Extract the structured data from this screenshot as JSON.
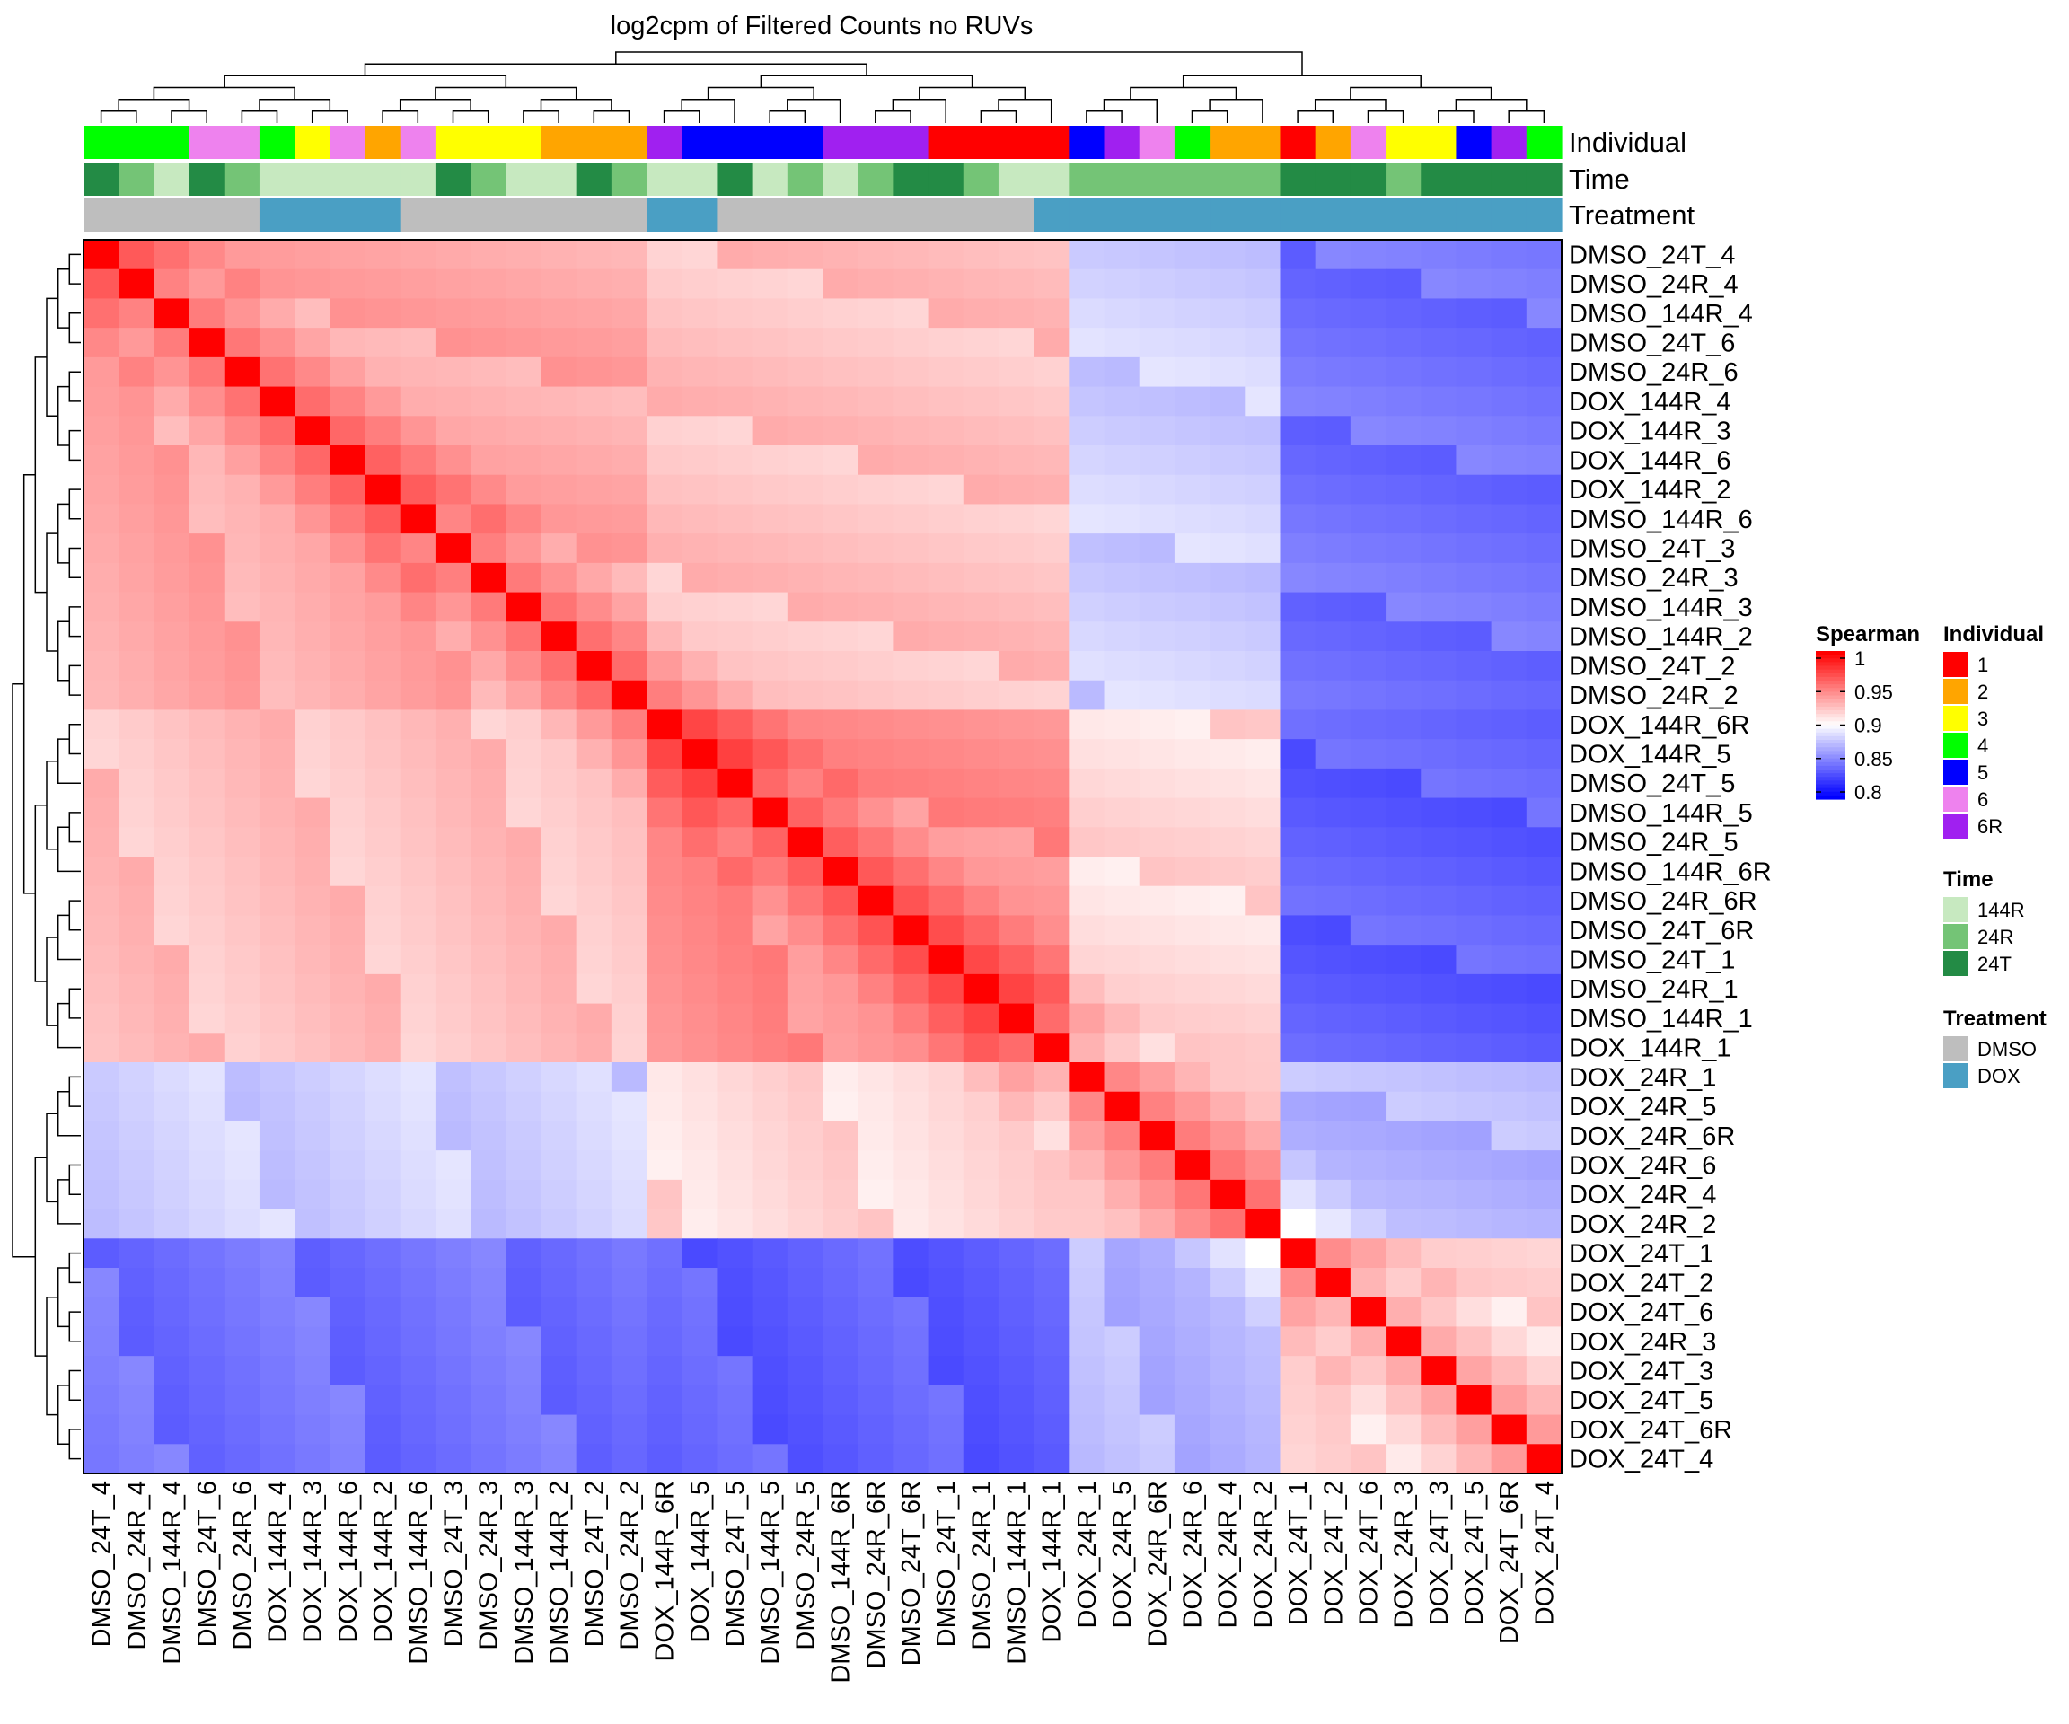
{
  "chart_data": {
    "type": "heatmap",
    "title": "log2cpm of Filtered Counts no RUVs",
    "labels": [
      "DMSO_24T_4",
      "DMSO_24R_4",
      "DMSO_144R_4",
      "DMSO_24T_6",
      "DMSO_24R_6",
      "DOX_144R_4",
      "DOX_144R_3",
      "DOX_144R_6",
      "DOX_144R_2",
      "DMSO_144R_6",
      "DMSO_24T_3",
      "DMSO_24R_3",
      "DMSO_144R_3",
      "DMSO_144R_2",
      "DMSO_24T_2",
      "DMSO_24R_2",
      "DOX_144R_6R",
      "DOX_144R_5",
      "DMSO_24T_5",
      "DMSO_144R_5",
      "DMSO_24R_5",
      "DMSO_144R_6R",
      "DMSO_24R_6R",
      "DMSO_24T_6R",
      "DMSO_24T_1",
      "DMSO_24R_1",
      "DMSO_144R_1",
      "DOX_144R_1",
      "DOX_24R_1",
      "DOX_24R_5",
      "DOX_24R_6R",
      "DOX_24R_6",
      "DOX_24R_4",
      "DOX_24R_2",
      "DOX_24T_1",
      "DOX_24T_2",
      "DOX_24T_6",
      "DOX_24R_3",
      "DOX_24T_3",
      "DOX_24T_5",
      "DOX_24T_6R",
      "DOX_24T_4"
    ],
    "groups": [
      0,
      0,
      0,
      0,
      0,
      0,
      0,
      0,
      0,
      0,
      0,
      0,
      0,
      0,
      0,
      0,
      1,
      1,
      1,
      1,
      1,
      1,
      1,
      1,
      1,
      1,
      1,
      1,
      2,
      2,
      2,
      2,
      2,
      2,
      3,
      3,
      3,
      3,
      3,
      3,
      3,
      3
    ],
    "group_correlation": [
      [
        0.935,
        0.925,
        0.882,
        0.845
      ],
      [
        0.925,
        0.945,
        0.915,
        0.838
      ],
      [
        0.882,
        0.915,
        0.93,
        0.872
      ],
      [
        0.845,
        0.838,
        0.872,
        0.915
      ]
    ],
    "annotations": [
      {
        "name": "Individual",
        "values": [
          "4",
          "4",
          "4",
          "6",
          "6",
          "4",
          "3",
          "6",
          "2",
          "6",
          "3",
          "3",
          "3",
          "2",
          "2",
          "2",
          "6R",
          "5",
          "5",
          "5",
          "5",
          "6R",
          "6R",
          "6R",
          "1",
          "1",
          "1",
          "1",
          "5",
          "6R",
          "6",
          "4",
          "2",
          "2",
          "1",
          "2",
          "6",
          "3",
          "3",
          "5",
          "6R",
          "4"
        ]
      },
      {
        "name": "Time",
        "values": [
          "24T",
          "24R",
          "144R",
          "24T",
          "24R",
          "144R",
          "144R",
          "144R",
          "144R",
          "144R",
          "24T",
          "24R",
          "144R",
          "144R",
          "24T",
          "24R",
          "144R",
          "144R",
          "24T",
          "144R",
          "24R",
          "144R",
          "24R",
          "24T",
          "24T",
          "24R",
          "144R",
          "144R",
          "24R",
          "24R",
          "24R",
          "24R",
          "24R",
          "24R",
          "24T",
          "24T",
          "24T",
          "24R",
          "24T",
          "24T",
          "24T",
          "24T"
        ]
      },
      {
        "name": "Treatment",
        "values": [
          "DMSO",
          "DMSO",
          "DMSO",
          "DMSO",
          "DMSO",
          "DOX",
          "DOX",
          "DOX",
          "DOX",
          "DMSO",
          "DMSO",
          "DMSO",
          "DMSO",
          "DMSO",
          "DMSO",
          "DMSO",
          "DOX",
          "DOX",
          "DMSO",
          "DMSO",
          "DMSO",
          "DMSO",
          "DMSO",
          "DMSO",
          "DMSO",
          "DMSO",
          "DMSO",
          "DOX",
          "DOX",
          "DOX",
          "DOX",
          "DOX",
          "DOX",
          "DOX",
          "DOX",
          "DOX",
          "DOX",
          "DOX",
          "DOX",
          "DOX",
          "DOX",
          "DOX"
        ]
      }
    ],
    "color_scale": {
      "title": "Spearman",
      "range": [
        0.8,
        1
      ],
      "ticks": [
        "1",
        "0.95",
        "0.9",
        "0.85",
        "0.8"
      ],
      "colors": {
        "low": "#0000ff",
        "mid": "#ffffff",
        "high": "#ff0000"
      }
    },
    "legends": [
      {
        "title": "Individual",
        "items": [
          {
            "label": "1",
            "color": "#ff0000"
          },
          {
            "label": "2",
            "color": "#ffa500"
          },
          {
            "label": "3",
            "color": "#ffff00"
          },
          {
            "label": "4",
            "color": "#00ff00"
          },
          {
            "label": "5",
            "color": "#0000ff"
          },
          {
            "label": "6",
            "color": "#ee82ee"
          },
          {
            "label": "6R",
            "color": "#a020f0"
          }
        ]
      },
      {
        "title": "Time",
        "items": [
          {
            "label": "144R",
            "color": "#c7e9c0"
          },
          {
            "label": "24R",
            "color": "#74c476"
          },
          {
            "label": "24T",
            "color": "#238b45"
          }
        ]
      },
      {
        "title": "Treatment",
        "items": [
          {
            "label": "DMSO",
            "color": "#bebebe"
          },
          {
            "label": "DOX",
            "color": "#4a9fc4"
          }
        ]
      }
    ]
  }
}
